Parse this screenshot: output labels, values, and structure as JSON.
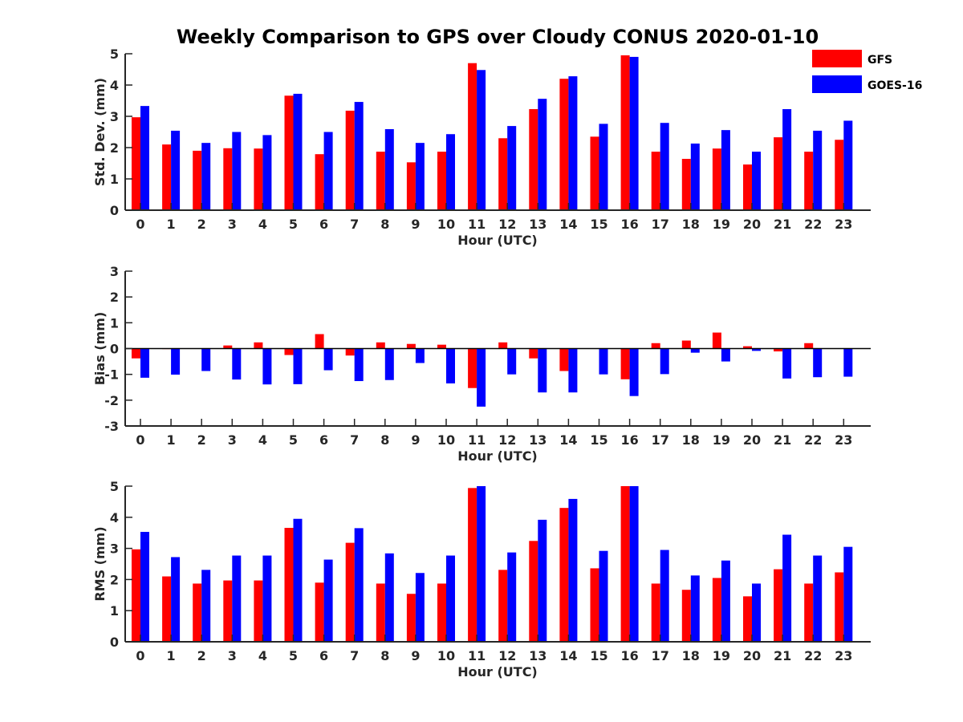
{
  "figure": {
    "title": "Weekly Comparison to GPS over Cloudy CONUS 2020-01-10"
  },
  "legend": {
    "placement": "top-right",
    "entries": [
      {
        "label": "GFS",
        "color": "#ff0000"
      },
      {
        "label": "GOES-16",
        "color": "#0000ff"
      }
    ]
  },
  "chart_data": [
    {
      "type": "bar",
      "xlabel": "Hour (UTC)",
      "ylabel": "Std. Dev. (mm)",
      "ylim": [
        0,
        5
      ],
      "yticks": [
        0,
        1,
        2,
        3,
        4,
        5
      ],
      "categories": [
        "0",
        "1",
        "2",
        "3",
        "4",
        "5",
        "6",
        "7",
        "8",
        "9",
        "10",
        "11",
        "12",
        "13",
        "14",
        "15",
        "16",
        "17",
        "18",
        "19",
        "20",
        "21",
        "22",
        "23"
      ],
      "series": [
        {
          "name": "GFS",
          "color": "#ff0000",
          "values": [
            2.97,
            2.1,
            1.9,
            1.98,
            1.97,
            3.66,
            1.79,
            3.18,
            1.87,
            1.53,
            1.87,
            4.7,
            2.3,
            3.23,
            4.2,
            2.35,
            4.95,
            1.87,
            1.64,
            1.97,
            1.46,
            2.33,
            1.87,
            2.25
          ]
        },
        {
          "name": "GOES-16",
          "color": "#0000ff",
          "values": [
            3.33,
            2.54,
            2.15,
            2.5,
            2.4,
            3.72,
            2.5,
            3.46,
            2.59,
            2.15,
            2.43,
            4.48,
            2.69,
            3.56,
            4.28,
            2.76,
            4.9,
            2.79,
            2.13,
            2.56,
            1.87,
            3.23,
            2.54,
            2.86
          ]
        }
      ]
    },
    {
      "type": "bar",
      "xlabel": "Hour (UTC)",
      "ylabel": "Bias (mm)",
      "ylim": [
        -3,
        3
      ],
      "yticks": [
        -3,
        -2,
        -1,
        0,
        1,
        2,
        3
      ],
      "zeroline": true,
      "categories": [
        "0",
        "1",
        "2",
        "3",
        "4",
        "5",
        "6",
        "7",
        "8",
        "9",
        "10",
        "11",
        "12",
        "13",
        "14",
        "15",
        "16",
        "17",
        "18",
        "19",
        "20",
        "21",
        "22",
        "23"
      ],
      "series": [
        {
          "name": "GFS",
          "color": "#ff0000",
          "values": [
            -0.38,
            -0.02,
            0.0,
            0.12,
            0.24,
            -0.25,
            0.56,
            -0.27,
            0.24,
            0.18,
            0.15,
            -1.53,
            0.24,
            -0.38,
            -0.87,
            0.0,
            -1.19,
            0.21,
            0.31,
            0.62,
            0.09,
            -0.11,
            0.21,
            0.0
          ]
        },
        {
          "name": "GOES-16",
          "color": "#0000ff",
          "values": [
            -1.13,
            -1.01,
            -0.87,
            -1.2,
            -1.39,
            -1.38,
            -0.84,
            -1.26,
            -1.22,
            -0.56,
            -1.35,
            -2.25,
            -1.0,
            -1.7,
            -1.7,
            -1.0,
            -1.84,
            -0.99,
            -0.16,
            -0.5,
            -0.09,
            -1.16,
            -1.11,
            -1.09
          ]
        }
      ]
    },
    {
      "type": "bar",
      "xlabel": "Hour (UTC)",
      "ylabel": "RMS (mm)",
      "ylim": [
        0,
        5
      ],
      "yticks": [
        0,
        1,
        2,
        3,
        4,
        5
      ],
      "categories": [
        "0",
        "1",
        "2",
        "3",
        "4",
        "5",
        "6",
        "7",
        "8",
        "9",
        "10",
        "11",
        "12",
        "13",
        "14",
        "15",
        "16",
        "17",
        "18",
        "19",
        "20",
        "21",
        "22",
        "23"
      ],
      "series": [
        {
          "name": "GFS",
          "color": "#ff0000",
          "values": [
            2.97,
            2.1,
            1.87,
            1.97,
            1.97,
            3.66,
            1.9,
            3.18,
            1.87,
            1.54,
            1.87,
            4.94,
            2.31,
            3.24,
            4.3,
            2.36,
            5.0,
            1.87,
            1.67,
            2.05,
            1.46,
            2.33,
            1.87,
            2.23
          ]
        },
        {
          "name": "GOES-16",
          "color": "#0000ff",
          "values": [
            3.53,
            2.72,
            2.31,
            2.77,
            2.77,
            3.95,
            2.64,
            3.65,
            2.84,
            2.21,
            2.77,
            5.0,
            2.87,
            3.92,
            4.59,
            2.92,
            5.0,
            2.95,
            2.13,
            2.61,
            1.87,
            3.44,
            2.77,
            3.05
          ]
        }
      ]
    }
  ]
}
